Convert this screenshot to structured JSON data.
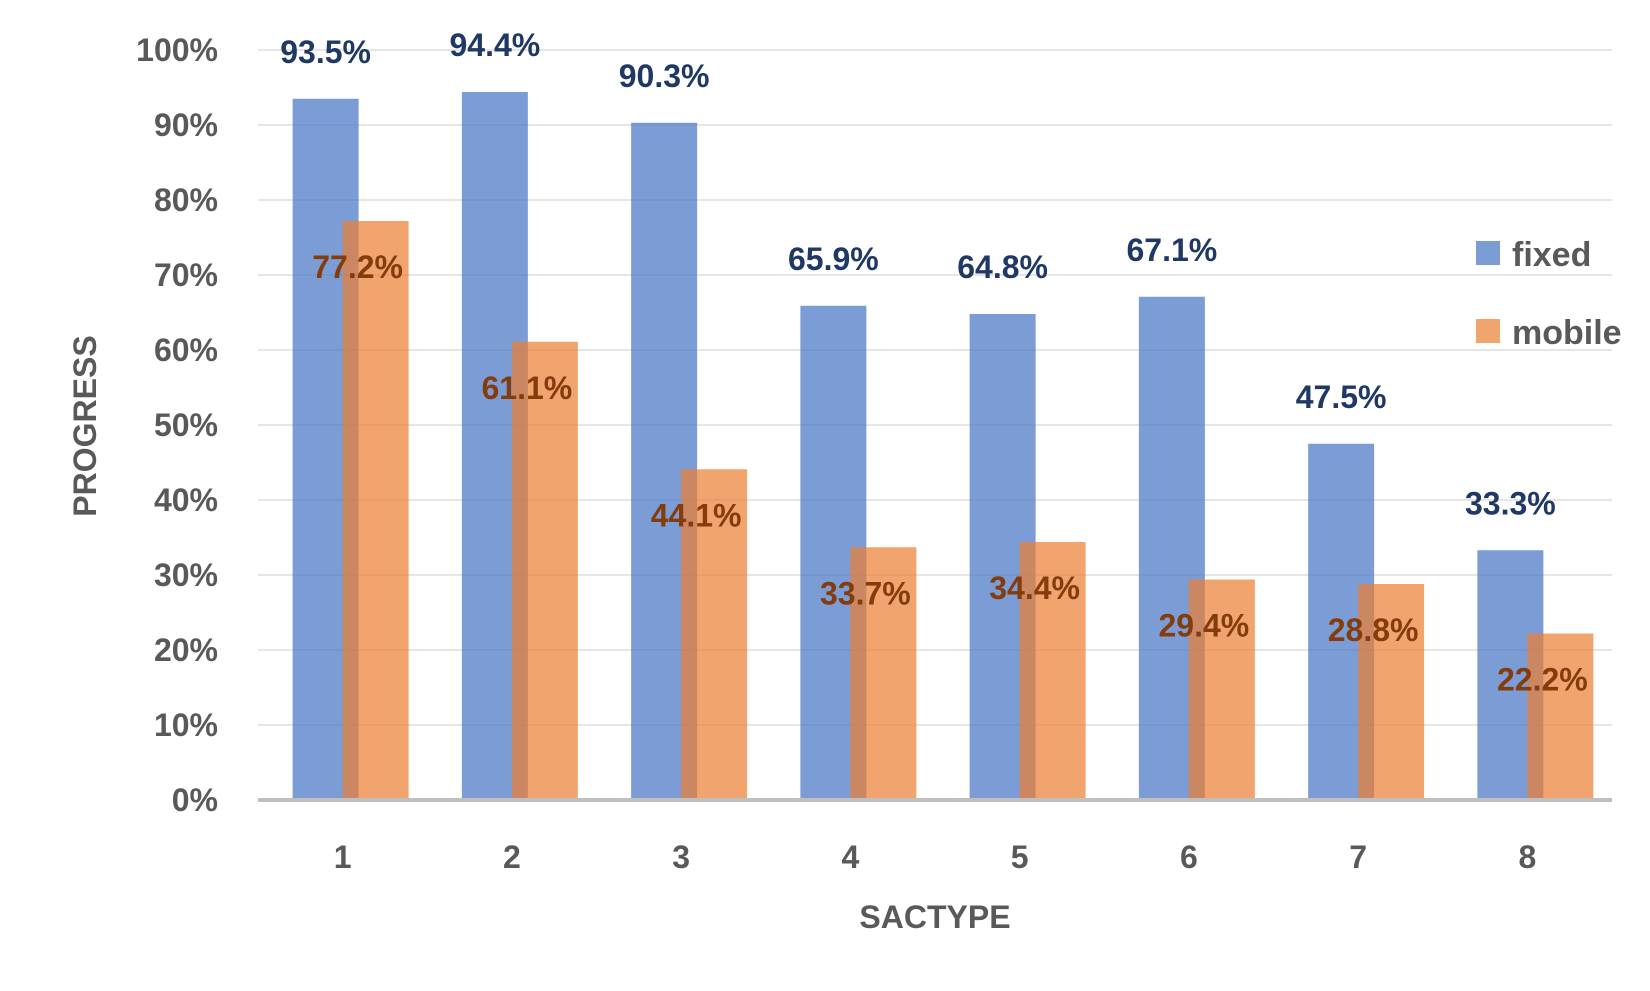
{
  "chart_data": {
    "type": "bar",
    "title": "",
    "xlabel": "SACTYPE",
    "ylabel": "PROGRESS",
    "categories": [
      "1",
      "2",
      "3",
      "4",
      "5",
      "6",
      "7",
      "8"
    ],
    "ylim": [
      0,
      100
    ],
    "y_ticks": [
      "0%",
      "10%",
      "20%",
      "30%",
      "40%",
      "50%",
      "60%",
      "70%",
      "80%",
      "90%",
      "100%"
    ],
    "grid": true,
    "legend_position": "right",
    "series": [
      {
        "name": "fixed",
        "color": "#4472C4",
        "label_color": "#1F3864",
        "values": [
          93.5,
          94.4,
          90.3,
          65.9,
          64.8,
          67.1,
          47.5,
          33.3
        ],
        "labels": [
          "93.5%",
          "94.4%",
          "90.3%",
          "65.9%",
          "64.8%",
          "67.1%",
          "47.5%",
          "33.3%"
        ]
      },
      {
        "name": "mobile",
        "color": "#ED7D31",
        "label_color": "#843C0C",
        "values": [
          77.2,
          61.1,
          44.1,
          33.7,
          34.4,
          29.4,
          28.8,
          22.2
        ],
        "labels": [
          "77.2%",
          "61.1%",
          "44.1%",
          "33.7%",
          "34.4%",
          "29.4%",
          "28.8%",
          "22.2%"
        ]
      }
    ]
  }
}
